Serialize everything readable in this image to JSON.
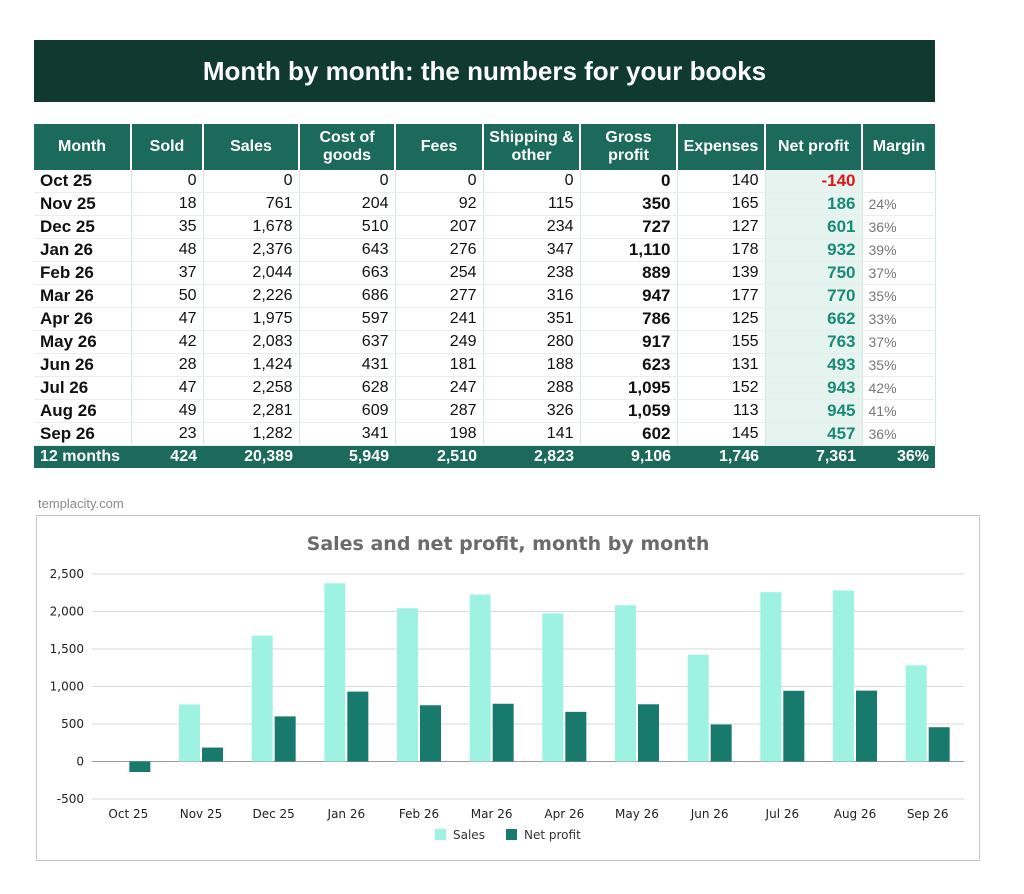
{
  "title": "Month by month: the numbers for your books",
  "table": {
    "headers": [
      "Month",
      "Sold",
      "Sales",
      "Cost of goods",
      "Fees",
      "Shipping & other",
      "Gross profit",
      "Expenses",
      "Net profit",
      "Margin"
    ],
    "rows": [
      [
        "Oct 25",
        "0",
        "0",
        "0",
        "0",
        "0",
        "0",
        "140",
        "-140",
        ""
      ],
      [
        "Nov 25",
        "18",
        "761",
        "204",
        "92",
        "115",
        "350",
        "165",
        "186",
        "24%"
      ],
      [
        "Dec 25",
        "35",
        "1,678",
        "510",
        "207",
        "234",
        "727",
        "127",
        "601",
        "36%"
      ],
      [
        "Jan 26",
        "48",
        "2,376",
        "643",
        "276",
        "347",
        "1,110",
        "178",
        "932",
        "39%"
      ],
      [
        "Feb 26",
        "37",
        "2,044",
        "663",
        "254",
        "238",
        "889",
        "139",
        "750",
        "37%"
      ],
      [
        "Mar 26",
        "50",
        "2,226",
        "686",
        "277",
        "316",
        "947",
        "177",
        "770",
        "35%"
      ],
      [
        "Apr 26",
        "47",
        "1,975",
        "597",
        "241",
        "351",
        "786",
        "125",
        "662",
        "33%"
      ],
      [
        "May 26",
        "42",
        "2,083",
        "637",
        "249",
        "280",
        "917",
        "155",
        "763",
        "37%"
      ],
      [
        "Jun 26",
        "28",
        "1,424",
        "431",
        "181",
        "188",
        "623",
        "131",
        "493",
        "35%"
      ],
      [
        "Jul 26",
        "47",
        "2,258",
        "628",
        "247",
        "288",
        "1,095",
        "152",
        "943",
        "42%"
      ],
      [
        "Aug 26",
        "49",
        "2,281",
        "609",
        "287",
        "326",
        "1,059",
        "113",
        "945",
        "41%"
      ],
      [
        "Sep 26",
        "23",
        "1,282",
        "341",
        "198",
        "141",
        "602",
        "145",
        "457",
        "36%"
      ]
    ],
    "total": [
      "12 months",
      "424",
      "20,389",
      "5,949",
      "2,510",
      "2,823",
      "9,106",
      "1,746",
      "7,361",
      "36%"
    ]
  },
  "watermark": "templacity.com",
  "colors": {
    "banner": "#103a30",
    "header": "#1b6a5c",
    "sales_bar": "#9df2e2",
    "profit_bar": "#177a6c",
    "negative": "#e01818"
  },
  "chart_data": {
    "type": "bar",
    "title": "Sales and net profit, month by month",
    "categories": [
      "Oct 25",
      "Nov 25",
      "Dec 25",
      "Jan 26",
      "Feb 26",
      "Mar 26",
      "Apr 26",
      "May 26",
      "Jun 26",
      "Jul 26",
      "Aug 26",
      "Sep 26"
    ],
    "series": [
      {
        "name": "Sales",
        "values": [
          0,
          761,
          1678,
          2376,
          2044,
          2226,
          1975,
          2083,
          1424,
          2258,
          2281,
          1282
        ]
      },
      {
        "name": "Net profit",
        "values": [
          -140,
          186,
          601,
          932,
          750,
          770,
          662,
          763,
          493,
          943,
          945,
          457
        ]
      }
    ],
    "ylim": [
      -500,
      2500
    ],
    "yticks": [
      -500,
      0,
      500,
      1000,
      1500,
      2000,
      2500
    ],
    "ytick_labels": [
      "-500",
      "0",
      "500",
      "1,000",
      "1,500",
      "2,000",
      "2,500"
    ],
    "grid": true,
    "legend": "bottom"
  }
}
